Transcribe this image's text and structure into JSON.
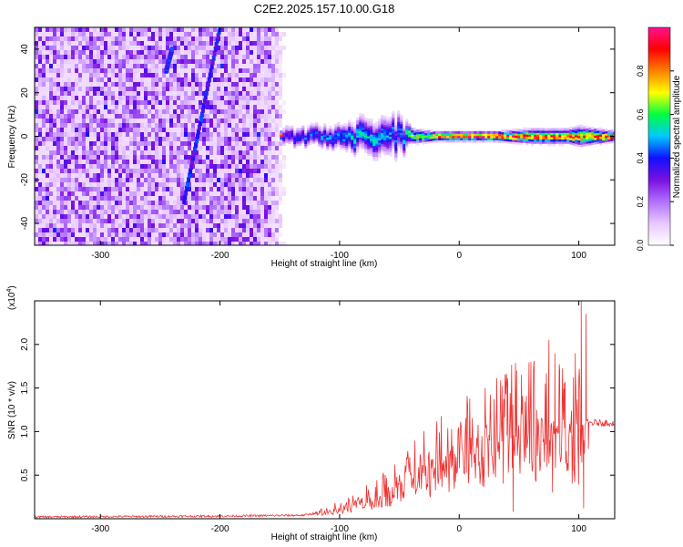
{
  "figure": {
    "title": "C2E2.2025.157.10.00.G18"
  },
  "chart_data": [
    {
      "type": "heatmap",
      "xlabel": "Height of straight line (km)",
      "ylabel": "Frequency (Hz)",
      "xlim": [
        -355,
        130
      ],
      "ylim": [
        -50,
        50
      ],
      "xticks": [
        -300,
        -200,
        -100,
        0,
        100
      ],
      "yticks": [
        -40,
        -20,
        0,
        20,
        40
      ],
      "colorbar": {
        "label": "Normalized spectral amplitude",
        "range": [
          0,
          1
        ],
        "ticks": [
          "0.0",
          "0.2",
          "0.4",
          "0.6",
          "0.8"
        ],
        "colors": [
          "#ffffff",
          "#e8c8ff",
          "#b070ff",
          "#7a10e0",
          "#1010ff",
          "#00c8ff",
          "#00ff40",
          "#ffff00",
          "#ff8000",
          "#ff0000",
          "#ff1090"
        ]
      },
      "noise_region": {
        "x": [
          -355,
          -145
        ],
        "y": [
          -50,
          50
        ],
        "typical_amplitude": 0.2
      },
      "signal_band": {
        "center_freq": 0,
        "x": [
          -150,
          130
        ],
        "profile": [
          {
            "x": -150,
            "width": 4,
            "amp": 0.35
          },
          {
            "x": -130,
            "width": 4,
            "amp": 0.45
          },
          {
            "x": -100,
            "width": 5,
            "amp": 0.5
          },
          {
            "x": -85,
            "width": 7,
            "amp": 0.55
          },
          {
            "x": -65,
            "width": 8,
            "amp": 0.5
          },
          {
            "x": -50,
            "width": 8,
            "amp": 0.45
          },
          {
            "x": -40,
            "width": 3,
            "amp": 0.7
          },
          {
            "x": -20,
            "width": 2,
            "amp": 0.85
          },
          {
            "x": 0,
            "width": 2,
            "amp": 0.95
          },
          {
            "x": 30,
            "width": 2,
            "amp": 0.95
          },
          {
            "x": 60,
            "width": 3,
            "amp": 0.9
          },
          {
            "x": 90,
            "width": 3,
            "amp": 0.9
          },
          {
            "x": 100,
            "width": 4,
            "amp": 0.85
          },
          {
            "x": 130,
            "width": 2,
            "amp": 0.95
          }
        ]
      },
      "streaks": [
        {
          "x": [
            -230,
            -200
          ],
          "y": [
            -30,
            50
          ]
        },
        {
          "x": [
            -245,
            -240
          ],
          "y": [
            30,
            40
          ]
        }
      ]
    },
    {
      "type": "line",
      "xlabel": "Height of straight line (km)",
      "ylabel": "SNR (10 * v/v)",
      "yscale_label": "(x10",
      "yscale_exponent": "4",
      "xlim": [
        -355,
        130
      ],
      "ylim": [
        0,
        2.5
      ],
      "xticks": [
        -300,
        -200,
        -100,
        0,
        100
      ],
      "yticks": [
        0.5,
        1.0,
        1.5,
        2.0
      ],
      "color": "#ee3333",
      "envelope": [
        {
          "x": -355,
          "y": 0.02
        },
        {
          "x": -200,
          "y": 0.03
        },
        {
          "x": -130,
          "y": 0.04
        },
        {
          "x": -110,
          "y": 0.09
        },
        {
          "x": -90,
          "y": 0.2
        },
        {
          "x": -70,
          "y": 0.3
        },
        {
          "x": -50,
          "y": 0.45
        },
        {
          "x": -30,
          "y": 0.65
        },
        {
          "x": -10,
          "y": 0.8
        },
        {
          "x": 10,
          "y": 0.95
        },
        {
          "x": 30,
          "y": 1.12
        },
        {
          "x": 50,
          "y": 1.2
        },
        {
          "x": 70,
          "y": 1.2
        },
        {
          "x": 90,
          "y": 1.15
        },
        {
          "x": 105,
          "y": 1.1
        },
        {
          "x": 130,
          "y": 1.1
        }
      ],
      "spikes": [
        {
          "x": 40,
          "y": 1.5
        },
        {
          "x": 45,
          "y": 0.08
        },
        {
          "x": 48,
          "y": 1.7
        },
        {
          "x": 52,
          "y": 1.65
        },
        {
          "x": 72,
          "y": 1.55
        },
        {
          "x": 75,
          "y": 2.05
        },
        {
          "x": 78,
          "y": 0.3
        },
        {
          "x": 80,
          "y": 1.9
        },
        {
          "x": 84,
          "y": 1.7
        },
        {
          "x": 88,
          "y": 1.55
        },
        {
          "x": 95,
          "y": 0.55
        },
        {
          "x": 97,
          "y": 1.9
        },
        {
          "x": 100,
          "y": 1.6
        },
        {
          "x": 102,
          "y": 2.5
        },
        {
          "x": 104,
          "y": 0.12
        },
        {
          "x": 106,
          "y": 2.35
        },
        {
          "x": 108,
          "y": 0.8
        }
      ]
    }
  ]
}
